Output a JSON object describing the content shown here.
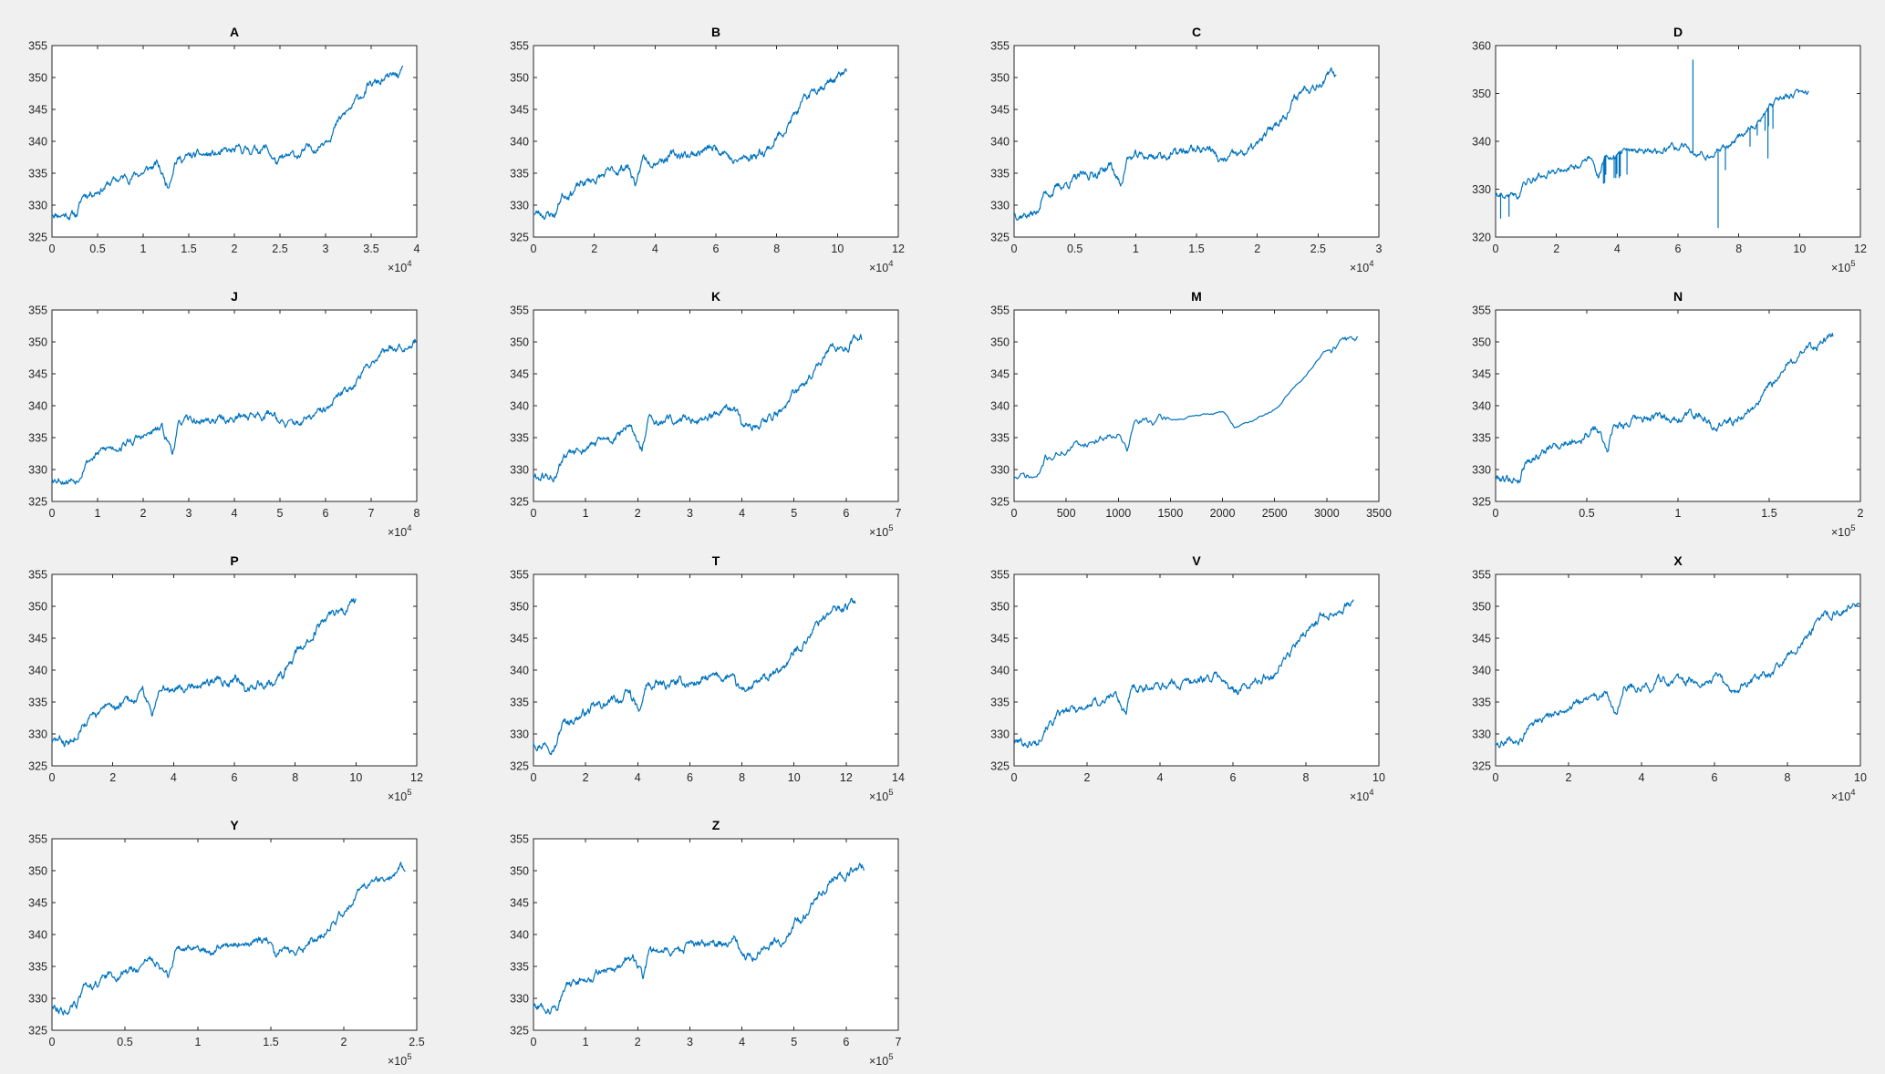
{
  "figure": {
    "background": "#f0f0f0",
    "line_color": "#0072bd",
    "layout": {
      "rows": 4,
      "cols": 4
    }
  },
  "chart_data": [
    {
      "type": "line",
      "title": "A",
      "xlim": [
        0,
        40000
      ],
      "ylim": [
        325,
        355
      ],
      "xticks": [
        0,
        5000,
        10000,
        15000,
        20000,
        25000,
        30000,
        35000,
        40000
      ],
      "xtick_labels": [
        "0",
        "0.5",
        "1",
        "1.5",
        "2",
        "2.5",
        "3",
        "3.5",
        "4"
      ],
      "x_exponent": "4",
      "yticks": [
        325,
        330,
        335,
        340,
        345,
        350,
        355
      ],
      "ytick_labels": [
        "325",
        "330",
        "335",
        "340",
        "345",
        "350",
        "355"
      ],
      "x_end": 38500,
      "shape": "standard",
      "seed": 11
    },
    {
      "type": "line",
      "title": "B",
      "xlim": [
        0,
        120000
      ],
      "ylim": [
        325,
        355
      ],
      "xticks": [
        0,
        20000,
        40000,
        60000,
        80000,
        100000,
        120000
      ],
      "xtick_labels": [
        "0",
        "2",
        "4",
        "6",
        "8",
        "10",
        "12"
      ],
      "x_exponent": "4",
      "yticks": [
        325,
        330,
        335,
        340,
        345,
        350,
        355
      ],
      "ytick_labels": [
        "325",
        "330",
        "335",
        "340",
        "345",
        "350",
        "355"
      ],
      "x_end": 103000,
      "shape": "standard",
      "seed": 23
    },
    {
      "type": "line",
      "title": "C",
      "xlim": [
        0,
        30000
      ],
      "ylim": [
        325,
        355
      ],
      "xticks": [
        0,
        5000,
        10000,
        15000,
        20000,
        25000,
        30000
      ],
      "xtick_labels": [
        "0",
        "0.5",
        "1",
        "1.5",
        "2",
        "2.5",
        "3"
      ],
      "x_exponent": "4",
      "yticks": [
        325,
        330,
        335,
        340,
        345,
        350,
        355
      ],
      "ytick_labels": [
        "325",
        "330",
        "335",
        "340",
        "345",
        "350",
        "355"
      ],
      "x_end": 26500,
      "shape": "standard",
      "seed": 37
    },
    {
      "type": "line",
      "title": "D",
      "xlim": [
        0,
        1200000
      ],
      "ylim": [
        320,
        360
      ],
      "xticks": [
        0,
        200000,
        400000,
        600000,
        800000,
        1000000,
        1200000
      ],
      "xtick_labels": [
        "0",
        "2",
        "4",
        "6",
        "8",
        "10",
        "12"
      ],
      "x_exponent": "5",
      "yticks": [
        320,
        330,
        340,
        350,
        360
      ],
      "ytick_labels": [
        "320",
        "330",
        "340",
        "350",
        "360"
      ],
      "x_end": 1030000,
      "shape": "spiky",
      "seed": 41
    },
    {
      "type": "line",
      "title": "J",
      "xlim": [
        0,
        80000
      ],
      "ylim": [
        325,
        355
      ],
      "xticks": [
        0,
        10000,
        20000,
        30000,
        40000,
        50000,
        60000,
        70000,
        80000
      ],
      "xtick_labels": [
        "0",
        "1",
        "2",
        "3",
        "4",
        "5",
        "6",
        "7",
        "8"
      ],
      "x_exponent": "4",
      "yticks": [
        325,
        330,
        335,
        340,
        345,
        350,
        355
      ],
      "ytick_labels": [
        "325",
        "330",
        "335",
        "340",
        "345",
        "350",
        "355"
      ],
      "x_end": 80000,
      "shape": "standard",
      "seed": 53
    },
    {
      "type": "line",
      "title": "K",
      "xlim": [
        0,
        700000
      ],
      "ylim": [
        325,
        355
      ],
      "xticks": [
        0,
        100000,
        200000,
        300000,
        400000,
        500000,
        600000,
        700000
      ],
      "xtick_labels": [
        "0",
        "1",
        "2",
        "3",
        "4",
        "5",
        "6",
        "7"
      ],
      "x_exponent": "5",
      "yticks": [
        325,
        330,
        335,
        340,
        345,
        350,
        355
      ],
      "ytick_labels": [
        "325",
        "330",
        "335",
        "340",
        "345",
        "350",
        "355"
      ],
      "x_end": 630000,
      "shape": "standard",
      "seed": 61
    },
    {
      "type": "line",
      "title": "M",
      "xlim": [
        0,
        3500
      ],
      "ylim": [
        325,
        355
      ],
      "xticks": [
        0,
        500,
        1000,
        1500,
        2000,
        2500,
        3000,
        3500
      ],
      "xtick_labels": [
        "0",
        "500",
        "1000",
        "1500",
        "2000",
        "2500",
        "3000",
        "3500"
      ],
      "x_exponent": "",
      "yticks": [
        325,
        330,
        335,
        340,
        345,
        350,
        355
      ],
      "ytick_labels": [
        "325",
        "330",
        "335",
        "340",
        "345",
        "350",
        "355"
      ],
      "x_end": 3300,
      "shape": "sparse",
      "seed": 71
    },
    {
      "type": "line",
      "title": "N",
      "xlim": [
        0,
        200000
      ],
      "ylim": [
        325,
        355
      ],
      "xticks": [
        0,
        50000,
        100000,
        150000,
        200000
      ],
      "xtick_labels": [
        "0",
        "0.5",
        "1",
        "1.5",
        "2"
      ],
      "x_exponent": "5",
      "yticks": [
        325,
        330,
        335,
        340,
        345,
        350,
        355
      ],
      "ytick_labels": [
        "325",
        "330",
        "335",
        "340",
        "345",
        "350",
        "355"
      ],
      "x_end": 185000,
      "shape": "standard",
      "seed": 79
    },
    {
      "type": "line",
      "title": "P",
      "xlim": [
        0,
        1200000
      ],
      "ylim": [
        325,
        355
      ],
      "xticks": [
        0,
        200000,
        400000,
        600000,
        800000,
        1000000,
        1200000
      ],
      "xtick_labels": [
        "0",
        "2",
        "4",
        "6",
        "8",
        "10",
        "12"
      ],
      "x_exponent": "5",
      "yticks": [
        325,
        330,
        335,
        340,
        345,
        350,
        355
      ],
      "ytick_labels": [
        "325",
        "330",
        "335",
        "340",
        "345",
        "350",
        "355"
      ],
      "x_end": 1000000,
      "shape": "standard",
      "seed": 83
    },
    {
      "type": "line",
      "title": "T",
      "xlim": [
        0,
        1400000
      ],
      "ylim": [
        325,
        355
      ],
      "xticks": [
        0,
        200000,
        400000,
        600000,
        800000,
        1000000,
        1200000,
        1400000
      ],
      "xtick_labels": [
        "0",
        "2",
        "4",
        "6",
        "8",
        "10",
        "12",
        "14"
      ],
      "x_exponent": "5",
      "yticks": [
        325,
        330,
        335,
        340,
        345,
        350,
        355
      ],
      "ytick_labels": [
        "325",
        "330",
        "335",
        "340",
        "345",
        "350",
        "355"
      ],
      "x_end": 1235000,
      "shape": "standard",
      "seed": 97
    },
    {
      "type": "line",
      "title": "V",
      "xlim": [
        0,
        100000
      ],
      "ylim": [
        325,
        355
      ],
      "xticks": [
        0,
        20000,
        40000,
        60000,
        80000,
        100000
      ],
      "xtick_labels": [
        "0",
        "2",
        "4",
        "6",
        "8",
        "10"
      ],
      "x_exponent": "4",
      "yticks": [
        325,
        330,
        335,
        340,
        345,
        350,
        355
      ],
      "ytick_labels": [
        "325",
        "330",
        "335",
        "340",
        "345",
        "350",
        "355"
      ],
      "x_end": 93000,
      "shape": "standard",
      "seed": 101
    },
    {
      "type": "line",
      "title": "X",
      "xlim": [
        0,
        100000
      ],
      "ylim": [
        325,
        355
      ],
      "xticks": [
        0,
        20000,
        40000,
        60000,
        80000,
        100000
      ],
      "xtick_labels": [
        "0",
        "2",
        "4",
        "6",
        "8",
        "10"
      ],
      "x_exponent": "4",
      "yticks": [
        325,
        330,
        335,
        340,
        345,
        350,
        355
      ],
      "ytick_labels": [
        "325",
        "330",
        "335",
        "340",
        "345",
        "350",
        "355"
      ],
      "x_end": 100000,
      "shape": "standard",
      "seed": 109
    },
    {
      "type": "line",
      "title": "Y",
      "xlim": [
        0,
        250000
      ],
      "ylim": [
        325,
        355
      ],
      "xticks": [
        0,
        50000,
        100000,
        150000,
        200000,
        250000
      ],
      "xtick_labels": [
        "0",
        "0.5",
        "1",
        "1.5",
        "2",
        "2.5"
      ],
      "x_exponent": "5",
      "yticks": [
        325,
        330,
        335,
        340,
        345,
        350,
        355
      ],
      "ytick_labels": [
        "325",
        "330",
        "335",
        "340",
        "345",
        "350",
        "355"
      ],
      "x_end": 242000,
      "shape": "standard",
      "seed": 113
    },
    {
      "type": "line",
      "title": "Z",
      "xlim": [
        0,
        700000
      ],
      "ylim": [
        325,
        355
      ],
      "xticks": [
        0,
        100000,
        200000,
        300000,
        400000,
        500000,
        600000,
        700000
      ],
      "xtick_labels": [
        "0",
        "1",
        "2",
        "3",
        "4",
        "5",
        "6",
        "7"
      ],
      "x_exponent": "5",
      "yticks": [
        325,
        330,
        335,
        340,
        345,
        350,
        355
      ],
      "ytick_labels": [
        "325",
        "330",
        "335",
        "340",
        "345",
        "350",
        "355"
      ],
      "x_end": 635000,
      "shape": "standard",
      "seed": 127
    }
  ]
}
